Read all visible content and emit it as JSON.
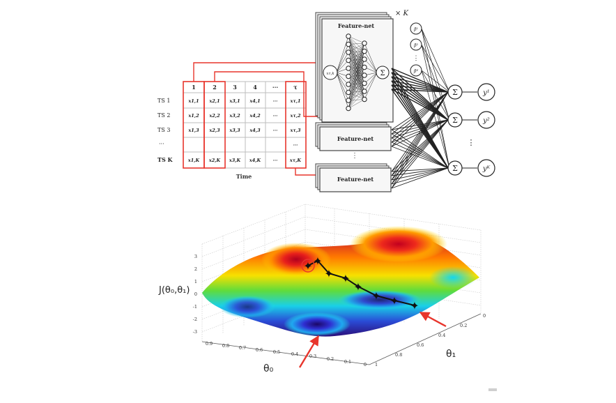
{
  "table": {
    "columns": [
      "1",
      "2",
      "3",
      "4",
      "···",
      "τ"
    ],
    "rows": [
      {
        "label": "TS 1",
        "cells": [
          "x1,1",
          "x2,1",
          "x3,1",
          "x4,1",
          "···",
          "xτ,1"
        ]
      },
      {
        "label": "TS 2",
        "cells": [
          "x1,2",
          "x2,2",
          "x3,2",
          "x4,2",
          "···",
          "xτ,2"
        ]
      },
      {
        "label": "TS 3",
        "cells": [
          "x1,3",
          "x2,3",
          "x3,3",
          "x4,3",
          "···",
          "xτ,3"
        ]
      },
      {
        "label": "···",
        "cells": [
          "",
          "",
          "",
          "",
          "",
          "···"
        ]
      },
      {
        "label": "TS K",
        "cells": [
          "x1,K",
          "x2,K",
          "x3,K",
          "x4,K",
          "···",
          "xτ,K"
        ]
      }
    ],
    "axis_label": "Time"
  },
  "network": {
    "times_k": "× K",
    "feature_net_label": "Feature-net",
    "input_node": "xτ,k",
    "sum_symbol": "Σ",
    "vdots": "⋮",
    "beta_labels": [
      "β¹",
      "β²",
      "⋮",
      "βᴷ"
    ],
    "outputs": [
      "y¹",
      "y²",
      "⋮",
      "yᴷ"
    ]
  },
  "surface": {
    "z_label": "J(θ₀,θ₁)",
    "x_label": "θ₀",
    "y_label": "θ₁",
    "z_ticks": [
      "3",
      "2",
      "1",
      "0",
      "-1",
      "-2",
      "-3"
    ],
    "theta0_ticks": [
      "0.9",
      "0.8",
      "0.7",
      "0.6",
      "0.5",
      "0.4",
      "0.3",
      "0.2",
      "0.1",
      "0"
    ],
    "theta1_ticks": [
      "0",
      "0.2",
      "0.4",
      "0.6",
      "0.8",
      "1"
    ]
  },
  "colors": {
    "red_highlight": "#e8352c",
    "dark_line": "#222222",
    "path_color": "#111111"
  }
}
